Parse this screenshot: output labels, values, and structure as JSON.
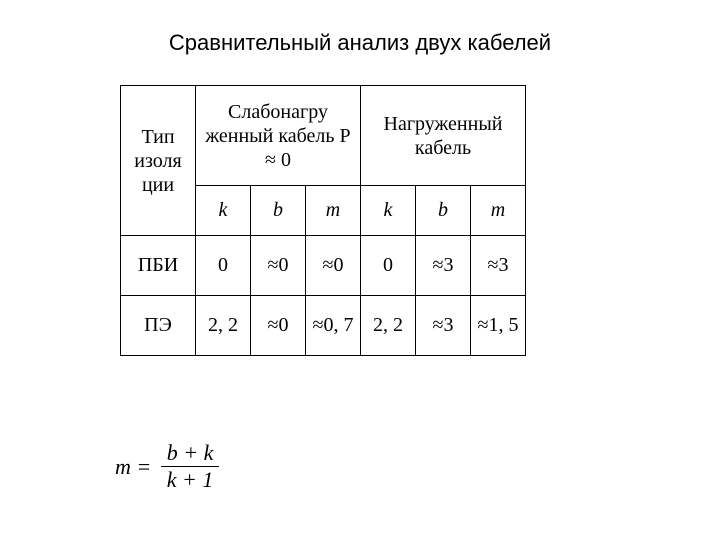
{
  "title": "Сравнительный анализ двух кабелей",
  "table": {
    "row_header_label": "Тип изоля ции",
    "group_headers": [
      "Слабонагру женный кабель P ≈ 0",
      "Нагруженный кабель"
    ],
    "sub_headers": [
      "k",
      "b",
      "m",
      "k",
      "b",
      "m"
    ],
    "rows": [
      {
        "label": "ПБИ",
        "cells": [
          "0",
          "≈0",
          "≈0",
          "0",
          "≈3",
          "≈3"
        ]
      },
      {
        "label": "ПЭ",
        "cells": [
          "2, 2",
          "≈0",
          "≈0, 7",
          "2, 2",
          "≈3",
          "≈1, 5"
        ]
      }
    ]
  },
  "formula": {
    "lhs": "m =",
    "numerator": "b + k",
    "denominator": "k + 1"
  },
  "style": {
    "background": "#ffffff",
    "text_color": "#000000",
    "border_color": "#000000",
    "title_fontsize": 22,
    "header_fontsize": 20,
    "cell_fontsize": 20,
    "formula_fontsize": 22,
    "col_type_width": 75,
    "col_sub_width": 55
  }
}
